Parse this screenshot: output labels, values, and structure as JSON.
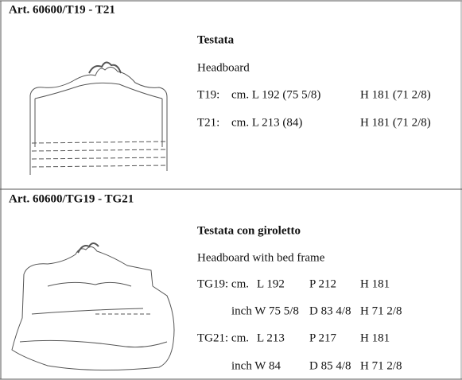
{
  "sections": [
    {
      "title": "Art. 60600/T19 - T21",
      "name": "Testata",
      "subtitle": "Headboard",
      "rows": [
        [
          "T19:",
          "cm. L 192 (75 5/8)",
          "H 181 (71 2/8)"
        ],
        [
          "T21:",
          "cm. L 213 (84)",
          "H 181 (71 2/8)"
        ]
      ]
    },
    {
      "title": "Art. 60600/TG19 - TG21",
      "name": "Testata con giroletto",
      "subtitle": "Headboard with bed frame",
      "rows": [
        [
          "TG19: cm.",
          "L 192",
          "P 212",
          "H 181"
        ],
        [
          "inch W 75 5/8",
          "D 83 4/8",
          "H 71 2/8"
        ],
        [
          "TG21: cm.",
          "L 213",
          "P 217",
          "H 181"
        ],
        [
          "inch W 84",
          "D 85 4/8",
          "H 71 2/8"
        ]
      ]
    }
  ]
}
